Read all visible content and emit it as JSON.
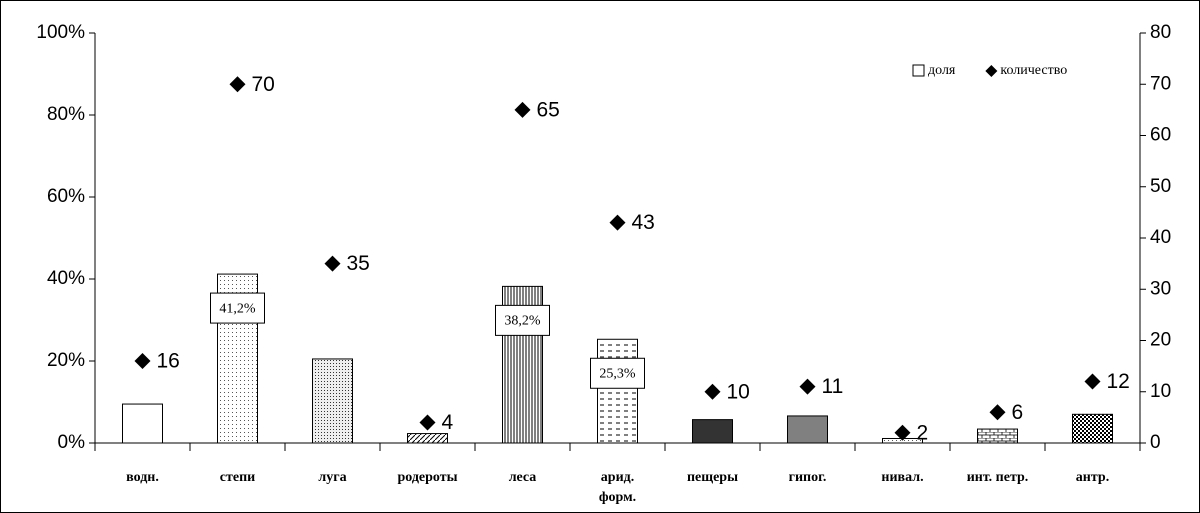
{
  "chart_data": {
    "type": "bar+scatter",
    "categories": [
      "водн.",
      "степи",
      "луга",
      "родероты",
      "леса",
      "арид.\nформ.",
      "пещеры",
      "гипог.",
      "нивал.",
      "инт. петр.",
      "антр."
    ],
    "series": [
      {
        "name": "доля",
        "type": "bar",
        "color": "#000000",
        "values": [
          9.5,
          41.2,
          20.5,
          2.3,
          38.2,
          25.3,
          5.7,
          6.6,
          1.1,
          3.4,
          7.0
        ],
        "value_labels": [
          null,
          "41,2%",
          null,
          null,
          "38,2%",
          "25,3%",
          null,
          null,
          null,
          null,
          null
        ]
      },
      {
        "name": "количество",
        "type": "scatter",
        "axis": "y2",
        "color": "#000000",
        "values": [
          16,
          70,
          35,
          4,
          65,
          43,
          10,
          11,
          2,
          6,
          12
        ]
      }
    ],
    "ylim": [
      0,
      100
    ],
    "yticks": [
      {
        "value": 0,
        "label": "0%"
      },
      {
        "value": 20,
        "label": "20%"
      },
      {
        "value": 40,
        "label": "40%"
      },
      {
        "value": 60,
        "label": "60%"
      },
      {
        "value": 80,
        "label": "80%"
      },
      {
        "value": 100,
        "label": "100%"
      }
    ],
    "y2lim": [
      0,
      80
    ],
    "y2ticks": [
      0,
      10,
      20,
      30,
      40,
      50,
      60,
      70,
      80
    ],
    "legend": "upper right"
  }
}
